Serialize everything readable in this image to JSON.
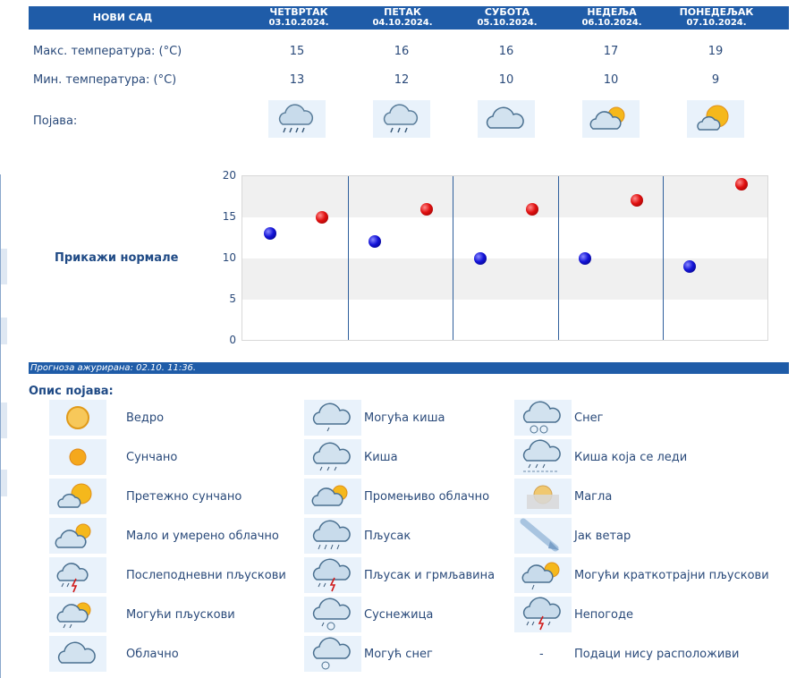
{
  "header": {
    "city": "НОВИ САД",
    "days": [
      {
        "name": "ЧЕТВРТАК",
        "date": "03.10.2024."
      },
      {
        "name": "ПЕТАК",
        "date": "04.10.2024."
      },
      {
        "name": "СУБОТА",
        "date": "05.10.2024."
      },
      {
        "name": "НЕДЕЉА",
        "date": "06.10.2024."
      },
      {
        "name": "ПОНЕДЕЉАК",
        "date": "07.10.2024."
      }
    ]
  },
  "rows": {
    "max_label": "Макс. температура: (°C)",
    "min_label": "Мин. температура: (°C)",
    "phen_label": "Појава:",
    "max_values": [
      "15",
      "16",
      "16",
      "17",
      "19"
    ],
    "min_values": [
      "13",
      "12",
      "10",
      "10",
      "9"
    ],
    "phen_icons": [
      "showers-icon",
      "rain-icon",
      "cloudy-icon",
      "partly-cloudy-icon",
      "mostly-sunny-icon"
    ]
  },
  "normals_link": "Прикажи нормале",
  "chart_data": {
    "type": "scatter",
    "categories": [
      "ЧЕТВРТАК",
      "ПЕТАК",
      "СУБОТА",
      "НЕДЕЉА",
      "ПОНЕДЕЉАК"
    ],
    "series": [
      {
        "values": [
          15,
          16,
          16,
          17,
          19
        ],
        "color": "#e01010"
      },
      {
        "values": [
          13,
          12,
          10,
          10,
          9
        ],
        "color": "#1414d8"
      }
    ],
    "yticks": [
      "20",
      "15",
      "10",
      "5",
      "0"
    ],
    "ylim": [
      0,
      20
    ],
    "grid": true
  },
  "updated": "Прогноза ажурирана:  02.10. 11:36.",
  "legend": {
    "title": "Опис појава:",
    "items": [
      {
        "icon": "clear-icon",
        "label": "Ведро"
      },
      {
        "icon": "sunny-icon",
        "label": "Сунчано"
      },
      {
        "icon": "mostly-sunny-icon",
        "label": "Претежно сунчано"
      },
      {
        "icon": "partly-cloudy-icon",
        "label": "Мало и умерено облачно"
      },
      {
        "icon": "afternoon-showers-icon",
        "label": "Послеподневни пљускови"
      },
      {
        "icon": "possible-showers-icon",
        "label": "Могући пљускови"
      },
      {
        "icon": "cloudy-icon",
        "label": "Облачно"
      },
      {
        "icon": "possible-rain-icon",
        "label": "Могућа киша"
      },
      {
        "icon": "rain-icon",
        "label": "Киша"
      },
      {
        "icon": "variable-cloudy-icon",
        "label": "Промењиво облачно"
      },
      {
        "icon": "showers-icon",
        "label": "Пљусак"
      },
      {
        "icon": "thunderstorm-icon",
        "label": "Пљусак и грмљавина"
      },
      {
        "icon": "sleet-icon",
        "label": "Суснежица"
      },
      {
        "icon": "possible-snow-icon",
        "label": "Могућ снег"
      },
      {
        "icon": "snow-icon",
        "label": "Снег"
      },
      {
        "icon": "freezing-rain-icon",
        "label": "Киша која се леди"
      },
      {
        "icon": "fog-icon",
        "label": "Магла"
      },
      {
        "icon": "strong-wind-icon",
        "label": "Јак ветар"
      },
      {
        "icon": "brief-showers-icon",
        "label": "Могући краткотрајни пљускови"
      },
      {
        "icon": "storm-icon",
        "label": "Непогоде"
      },
      {
        "icon": "no-data-icon",
        "label": "Подаци нису расположиви",
        "symbol": "-"
      }
    ]
  }
}
